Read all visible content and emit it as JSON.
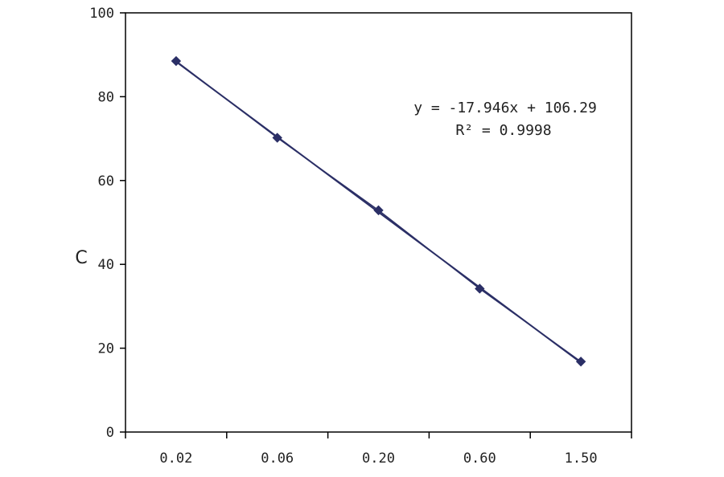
{
  "chart_data": {
    "type": "scatter",
    "categories": [
      "0.02",
      "0.06",
      "0.20",
      "0.60",
      "1.50"
    ],
    "series": [
      {
        "values": [
          88.5,
          70.2,
          52.9,
          34.2,
          16.8
        ]
      }
    ],
    "trendline": {
      "equation": "y = -17.946x + 106.29",
      "r2": "R² = 0.9998",
      "slope": -17.946,
      "intercept": 106.29
    },
    "ylabel": "C",
    "ylim": [
      0,
      100
    ],
    "yticks": [
      "0",
      "20",
      "40",
      "60",
      "80",
      "100"
    ],
    "grid": false,
    "legend": "none",
    "colors": {
      "marker": "#2b2f66",
      "line": "#2b2f66",
      "axis": "#000000"
    }
  }
}
